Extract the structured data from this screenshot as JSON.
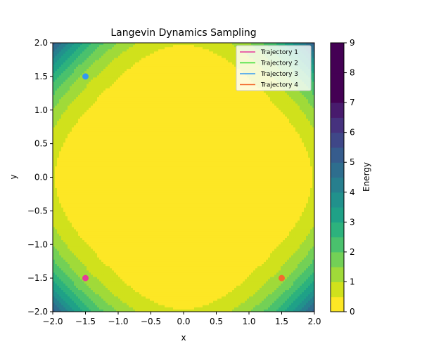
{
  "chart_data": {
    "type": "heatmap",
    "title": "Langevin Dynamics Sampling",
    "xlabel": "x",
    "ylabel": "y",
    "xlim": [
      -2.0,
      2.0
    ],
    "ylim": [
      -2.0,
      2.0
    ],
    "x_ticks": [
      "−2.0",
      "−1.5",
      "−1.0",
      "−0.5",
      "0.0",
      "0.5",
      "1.0",
      "1.5",
      "2.0"
    ],
    "y_ticks": [
      "−2.0",
      "−1.5",
      "−1.0",
      "−0.5",
      "0.0",
      "0.5",
      "1.0",
      "1.5",
      "2.0"
    ],
    "x_tick_values": [
      -2.0,
      -1.5,
      -1.0,
      -0.5,
      0.0,
      0.5,
      1.0,
      1.5,
      2.0
    ],
    "y_tick_values": [
      -2.0,
      -1.5,
      -1.0,
      -0.5,
      0.0,
      0.5,
      1.0,
      1.5,
      2.0
    ],
    "colorbar": {
      "label": "Energy",
      "range": [
        0,
        9
      ],
      "ticks": [
        "0",
        "1",
        "2",
        "3",
        "4",
        "5",
        "6",
        "7",
        "8",
        "9"
      ],
      "tick_values": [
        0,
        1,
        2,
        3,
        4,
        5,
        6,
        7,
        8,
        9
      ],
      "levels": [
        0,
        0.5,
        1,
        1.5,
        2,
        2.5,
        3,
        3.5,
        4,
        4.5,
        5,
        5.5,
        6,
        6.5,
        7,
        7.5,
        8,
        8.5,
        9
      ],
      "colormap": "viridis_r",
      "colors": [
        "#fde725",
        "#d0e11c",
        "#a0da39",
        "#73d056",
        "#4ac16d",
        "#2db27d",
        "#1fa187",
        "#21918c",
        "#277f8e",
        "#2e6e8e",
        "#365c8d",
        "#3f4788",
        "#46327e",
        "#481b6d",
        "#440154"
      ]
    },
    "legend_position": "top-right",
    "series": [
      {
        "name": "Trajectory 1",
        "color": "#e6399b",
        "points": [
          {
            "x": -1.5,
            "y": -1.5
          }
        ]
      },
      {
        "name": "Trajectory 2",
        "color": "#33e02f",
        "points": []
      },
      {
        "name": "Trajectory 3",
        "color": "#3399f2",
        "points": [
          {
            "x": -1.5,
            "y": 1.5
          }
        ]
      },
      {
        "name": "Trajectory 4",
        "color": "#f26a2e",
        "points": [
          {
            "x": 1.5,
            "y": -1.5
          }
        ]
      }
    ]
  }
}
